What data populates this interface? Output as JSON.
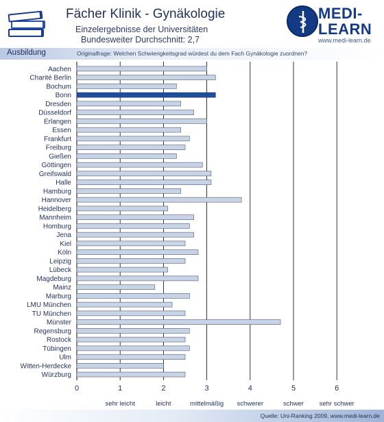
{
  "header": {
    "title": "Fächer Klinik - Gynäkologie",
    "subtitle_line1": "Einzelergebnisse der Universitäten",
    "subtitle_line2": "Bundesweiter Durchschnitt: 2,7"
  },
  "logo": {
    "text_line1": "MEDI-",
    "text_line2": "LEARN",
    "url": "www.medi-learn.de"
  },
  "section": {
    "tab": "Ausbildung",
    "question": "Originalfrage: Welchen Schwierigkeitsgrad würdest du dem Fach Gynäkologie zuordnen?"
  },
  "footer": {
    "source": "Quelle: Uni-Ranking 2009, www.medi-learn.de"
  },
  "chart_data": {
    "type": "bar",
    "orientation": "horizontal",
    "categories": [
      "Aachen",
      "Charité Berlin",
      "Bochum",
      "Bonn",
      "Dresden",
      "Düsseldorf",
      "Erlangen",
      "Essen",
      "Frankfurt",
      "Freiburg",
      "Gießen",
      "Göttingen",
      "Greifswald",
      "Halle",
      "Hamburg",
      "Hannover",
      "Heidelberg",
      "Mannheim",
      "Homburg",
      "Jena",
      "Kiel",
      "Köln",
      "Leipzig",
      "Lübeck",
      "Magdeburg",
      "Mainz",
      "Marburg",
      "LMU München",
      "TU München",
      "Münster",
      "Regensburg",
      "Rostock",
      "Tübingen",
      "Ulm",
      "Witten-Herdecke",
      "Würzburg"
    ],
    "values": [
      3.0,
      3.2,
      2.3,
      3.2,
      2.4,
      2.7,
      3.0,
      2.4,
      2.6,
      2.5,
      2.3,
      2.9,
      3.1,
      3.1,
      2.4,
      3.8,
      2.1,
      2.7,
      2.6,
      2.7,
      2.5,
      2.8,
      2.5,
      2.1,
      2.8,
      1.8,
      2.6,
      2.2,
      2.5,
      4.7,
      2.6,
      2.5,
      2.6,
      2.5,
      2.0,
      2.5
    ],
    "highlight": "Bonn",
    "xlim": [
      0,
      6
    ],
    "xticks": [
      "0",
      "1",
      "2",
      "3",
      "4",
      "5",
      "6"
    ],
    "scale_labels": [
      "sehr leicht",
      "leicht",
      "mittelmäßig",
      "schwerer",
      "schwer",
      "sehr schwer"
    ],
    "grid": true,
    "colors": {
      "bar": "#c9d3e6",
      "bar_edge": "#4a5a7a",
      "highlight": "#1f4f9a",
      "grid": "#000000"
    }
  }
}
